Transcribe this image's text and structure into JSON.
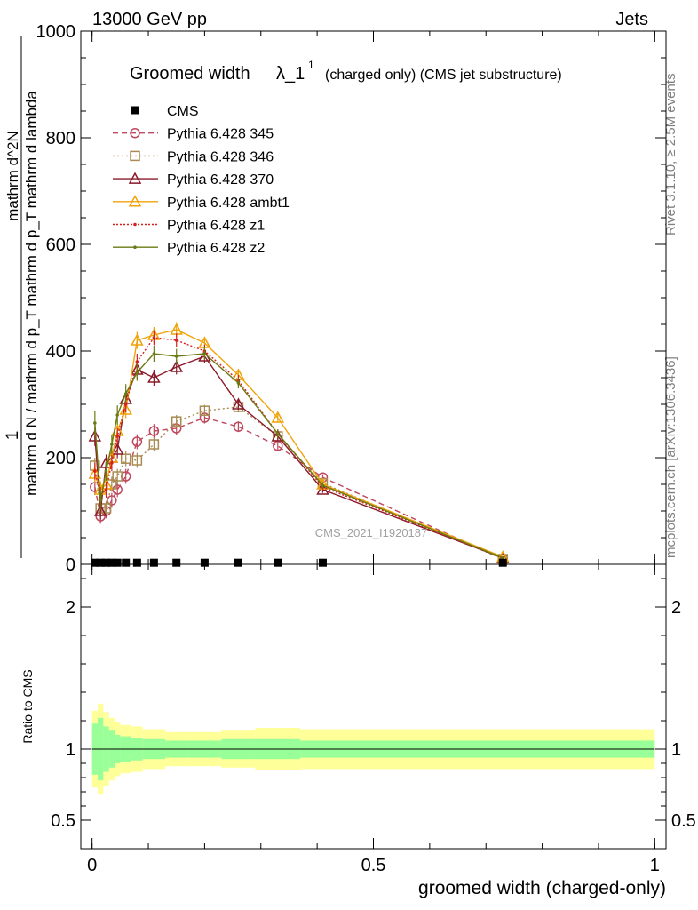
{
  "header": {
    "left_label": "13000 GeV pp",
    "right_label": "Jets"
  },
  "side_labels": {
    "rivet": "Rivet 3.1.10, ≥ 2.5M events",
    "mcplots": "mcplots.cern.ch [arXiv:1306.3436]"
  },
  "watermark": "CMS_2021_I1920187",
  "chart_data": {
    "type": "line",
    "title_main": "Groomed width",
    "title_symbol": "λ_1",
    "title_superscript": "1",
    "title_suffix": "(charged only) (CMS jet substructure)",
    "xlabel": "groomed width (charged-only)",
    "ylabel_top_line": "1",
    "ylabel_denominator": "mathrm d N / mathrm d p_T mathrm d p_T mathrm d lambda",
    "ylabel_numerator": "mathrm d^2N",
    "ratio_ylabel": "Ratio to CMS",
    "xlim": [
      -0.02,
      1.02
    ],
    "ylim": [
      0,
      1000
    ],
    "ratio_ylim": [
      0.3,
      2.3
    ],
    "x_ticks": [
      0,
      0.5,
      1
    ],
    "x_tick_labels": [
      "0",
      "0.5",
      "1"
    ],
    "y_ticks": [
      0,
      200,
      400,
      600,
      800,
      1000
    ],
    "y_tick_labels": [
      "0",
      "200",
      "400",
      "600",
      "800",
      "1000"
    ],
    "ratio_y_ticks": [
      0.5,
      1,
      2
    ],
    "ratio_y_tick_labels": [
      "0.5",
      "1",
      "2"
    ],
    "legend_position": "top-left",
    "data": {
      "name": "CMS",
      "color": "#000000",
      "x": [
        0.005,
        0.015,
        0.025,
        0.035,
        0.045,
        0.06,
        0.08,
        0.11,
        0.15,
        0.2,
        0.26,
        0.33,
        0.41,
        0.73
      ],
      "y": [
        3,
        3,
        3,
        3,
        3,
        3,
        3,
        3,
        3,
        3,
        3,
        3,
        3,
        3
      ]
    },
    "series": [
      {
        "name": "Pythia 6.428 345",
        "color": "#c0485e",
        "dash": "6,4",
        "marker": "circle",
        "x": [
          0.005,
          0.015,
          0.025,
          0.035,
          0.045,
          0.06,
          0.08,
          0.11,
          0.15,
          0.2,
          0.26,
          0.33,
          0.41,
          0.73
        ],
        "y": [
          145,
          90,
          100,
          120,
          140,
          165,
          230,
          250,
          255,
          275,
          258,
          222,
          163,
          10
        ],
        "err": [
          15,
          14,
          14,
          14,
          14,
          14,
          14,
          13,
          12,
          11,
          10,
          8,
          6,
          2
        ]
      },
      {
        "name": "Pythia 6.428 346",
        "color": "#a88b52",
        "dash": "2,3",
        "marker": "square",
        "x": [
          0.005,
          0.015,
          0.025,
          0.035,
          0.045,
          0.06,
          0.08,
          0.11,
          0.15,
          0.2,
          0.26,
          0.33,
          0.41,
          0.73
        ],
        "y": [
          185,
          105,
          105,
          150,
          165,
          198,
          195,
          225,
          268,
          288,
          295,
          240,
          152,
          10
        ],
        "err": [
          15,
          14,
          14,
          14,
          14,
          14,
          14,
          13,
          12,
          11,
          10,
          8,
          6,
          2
        ]
      },
      {
        "name": "Pythia 6.428 370",
        "color": "#8b1a2b",
        "dash": "",
        "marker": "triangle",
        "x": [
          0.005,
          0.015,
          0.025,
          0.035,
          0.045,
          0.06,
          0.08,
          0.11,
          0.15,
          0.2,
          0.26,
          0.33,
          0.41,
          0.73
        ],
        "y": [
          240,
          100,
          190,
          200,
          215,
          310,
          365,
          350,
          370,
          390,
          300,
          240,
          140,
          12
        ],
        "err": [
          18,
          16,
          16,
          16,
          16,
          16,
          16,
          15,
          14,
          12,
          10,
          8,
          6,
          2
        ]
      },
      {
        "name": "Pythia 6.428 ambt1",
        "color": "#f0a30a",
        "dash": "",
        "marker": "triangle",
        "x": [
          0.005,
          0.015,
          0.025,
          0.035,
          0.045,
          0.06,
          0.08,
          0.11,
          0.15,
          0.2,
          0.26,
          0.33,
          0.41,
          0.73
        ],
        "y": [
          170,
          140,
          150,
          200,
          250,
          290,
          420,
          430,
          440,
          415,
          355,
          275,
          150,
          14
        ],
        "err": [
          18,
          16,
          16,
          16,
          16,
          16,
          16,
          15,
          14,
          12,
          10,
          8,
          6,
          2
        ]
      },
      {
        "name": "Pythia 6.428 z1",
        "color": "#d62020",
        "dash": "2,2",
        "marker": "dot",
        "x": [
          0.005,
          0.015,
          0.025,
          0.035,
          0.045,
          0.06,
          0.08,
          0.11,
          0.15,
          0.2,
          0.26,
          0.33,
          0.41,
          0.73
        ],
        "y": [
          175,
          130,
          140,
          190,
          240,
          300,
          380,
          425,
          420,
          400,
          345,
          245,
          145,
          12
        ],
        "err": [
          16,
          15,
          15,
          15,
          15,
          15,
          15,
          14,
          13,
          12,
          10,
          8,
          6,
          2
        ]
      },
      {
        "name": "Pythia 6.428 z2",
        "color": "#6b7a12",
        "dash": "",
        "marker": "dot",
        "x": [
          0.005,
          0.015,
          0.025,
          0.035,
          0.045,
          0.06,
          0.08,
          0.11,
          0.15,
          0.2,
          0.26,
          0.33,
          0.41,
          0.73
        ],
        "y": [
          265,
          120,
          175,
          225,
          280,
          320,
          360,
          395,
          390,
          395,
          340,
          245,
          148,
          12
        ],
        "err": [
          22,
          18,
          18,
          18,
          18,
          18,
          16,
          15,
          14,
          12,
          10,
          8,
          6,
          2
        ]
      }
    ],
    "ratio_bands": {
      "x_edges": [
        0,
        0.01,
        0.02,
        0.03,
        0.04,
        0.05,
        0.07,
        0.09,
        0.13,
        0.17,
        0.23,
        0.29,
        0.37,
        0.45,
        1.0
      ],
      "inner": [
        0.18,
        0.22,
        0.16,
        0.13,
        0.1,
        0.09,
        0.08,
        0.07,
        0.06,
        0.06,
        0.07,
        0.07,
        0.06,
        0.06
      ],
      "outer": [
        0.27,
        0.32,
        0.26,
        0.22,
        0.19,
        0.17,
        0.16,
        0.14,
        0.12,
        0.12,
        0.13,
        0.15,
        0.14,
        0.14
      ],
      "inner_color": "#99ff99",
      "outer_color": "#ffff99"
    }
  }
}
